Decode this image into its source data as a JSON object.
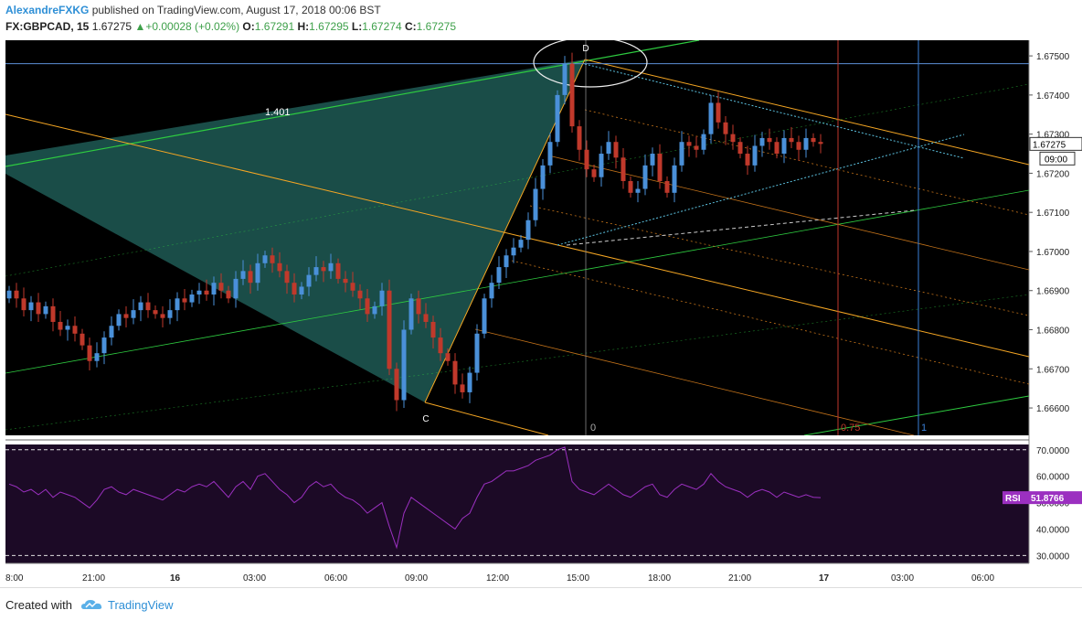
{
  "header": {
    "author": "AlexandreFXKG",
    "published": "published on TradingView.com, August 17, 2018 00:06 BST",
    "symbol": "FX:GBPCAD, 15",
    "last": "1.67275",
    "change_arrow": "▲",
    "change": "+0.00028 (+0.02%)",
    "o_label": "O:",
    "o": "1.67291",
    "h_label": "H:",
    "h": "1.67295",
    "l_label": "L:",
    "l": "1.67274",
    "c_label": "C:",
    "c": "1.67275"
  },
  "footer": {
    "created_with": "Created with",
    "brand": "TradingView",
    "logo_icon": "tradingview-cloud-icon"
  },
  "colors": {
    "bg": "#000000",
    "up": "#4a90d9",
    "down": "#c0392b",
    "rsi": "#9b30c0",
    "harmonic_fill": "#1f5a55",
    "fork": "#f5a623",
    "green_line": "#2ecc40"
  },
  "chart_data": [
    {
      "type": "candlestick",
      "title": "",
      "ylim": [
        1.6653,
        1.6754
      ],
      "y_ticks": [
        1.666,
        1.667,
        1.668,
        1.669,
        1.67,
        1.671,
        1.672,
        1.673,
        1.674,
        1.675
      ],
      "y_tick_labels": [
        "1.66600",
        "1.66700",
        "1.66800",
        "1.66900",
        "1.67000",
        "1.67100",
        "1.67200",
        "1.67300",
        "1.67400",
        "1.67500"
      ],
      "x_tick_labels": [
        "8:00",
        "21:00",
        "16",
        "03:00",
        "06:00",
        "09:00",
        "12:00",
        "15:00",
        "18:00",
        "21:00",
        "17",
        "03:00",
        "06:00"
      ],
      "last_price_label": "1.67275",
      "countdown_label": "09:00",
      "horizontal_level": 1.6748,
      "close": [
        1.669,
        1.6688,
        1.6685,
        1.6687,
        1.6684,
        1.6686,
        1.6682,
        1.668,
        1.6681,
        1.6679,
        1.6676,
        1.6672,
        1.6674,
        1.6678,
        1.6681,
        1.6684,
        1.6683,
        1.6685,
        1.6687,
        1.6685,
        1.6684,
        1.6683,
        1.6685,
        1.6688,
        1.6687,
        1.6689,
        1.669,
        1.6689,
        1.6692,
        1.669,
        1.6688,
        1.6693,
        1.6695,
        1.6692,
        1.6697,
        1.6699,
        1.6697,
        1.6695,
        1.6692,
        1.6689,
        1.6691,
        1.6694,
        1.6696,
        1.6695,
        1.6697,
        1.6693,
        1.6692,
        1.669,
        1.6688,
        1.6684,
        1.6686,
        1.669,
        1.667,
        1.6662,
        1.668,
        1.6688,
        1.6684,
        1.6682,
        1.6678,
        1.6674,
        1.6672,
        1.6666,
        1.6664,
        1.6669,
        1.6679,
        1.6688,
        1.6692,
        1.6696,
        1.6699,
        1.6701,
        1.6703,
        1.6708,
        1.6716,
        1.6722,
        1.6728,
        1.674,
        1.6748,
        1.6732,
        1.6726,
        1.6721,
        1.6719,
        1.6725,
        1.6728,
        1.6724,
        1.6718,
        1.6715,
        1.6716,
        1.6722,
        1.6725,
        1.6718,
        1.6715,
        1.6722,
        1.6728,
        1.6727,
        1.6726,
        1.673,
        1.6738,
        1.6733,
        1.673,
        1.6728,
        1.6725,
        1.6722,
        1.6727,
        1.6729,
        1.6728,
        1.6725,
        1.6729,
        1.6728,
        1.6726,
        1.6729,
        1.6728,
        1.67275
      ],
      "pattern_points": {
        "C": "C",
        "D": "D",
        "ratio": "1.401"
      },
      "vertical_lines": [
        {
          "label": "0"
        },
        {
          "label": "0.75"
        },
        {
          "label": "1"
        }
      ]
    },
    {
      "type": "line",
      "title": "",
      "series_label": "RSI",
      "last_value": "51.8766",
      "ylim": [
        27,
        72
      ],
      "levels": [
        30,
        70
      ],
      "y_tick_labels": [
        "30.0000",
        "40.0000",
        "50.0000",
        "60.0000",
        "70.0000"
      ],
      "values": [
        57,
        56,
        54,
        55,
        53,
        55,
        52,
        54,
        53,
        52,
        50,
        48,
        51,
        55,
        56,
        54,
        53,
        55,
        54,
        53,
        52,
        51,
        53,
        55,
        54,
        56,
        57,
        56,
        58,
        55,
        52,
        56,
        58,
        55,
        60,
        61,
        58,
        55,
        53,
        50,
        52,
        56,
        58,
        56,
        57,
        54,
        52,
        51,
        49,
        46,
        48,
        50,
        41,
        33,
        46,
        52,
        50,
        48,
        46,
        44,
        42,
        40,
        44,
        46,
        52,
        57,
        58,
        60,
        62,
        62,
        63,
        64,
        66,
        67,
        68,
        70,
        71,
        58,
        55,
        54,
        53,
        55,
        57,
        55,
        53,
        52,
        54,
        56,
        57,
        53,
        52,
        55,
        57,
        56,
        55,
        57,
        61,
        58,
        56,
        55,
        54,
        52,
        54,
        55,
        54,
        52,
        54,
        53,
        52,
        53,
        52,
        51.8766
      ]
    }
  ]
}
